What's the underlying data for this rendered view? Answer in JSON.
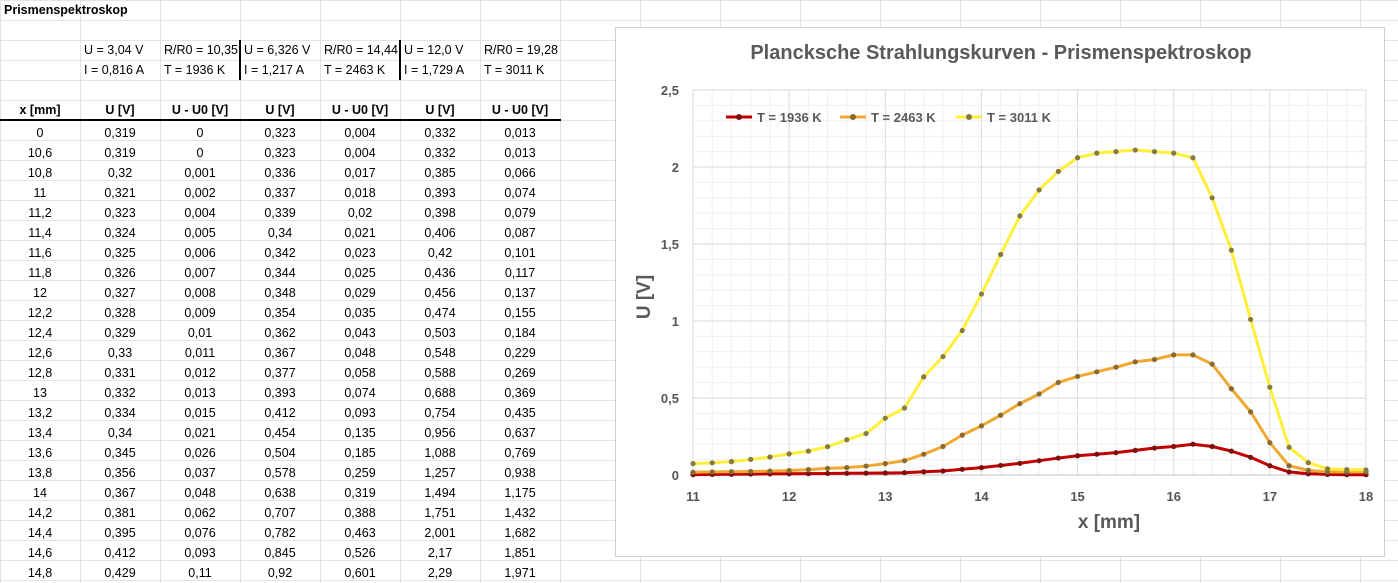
{
  "sheet": {
    "title": "Prismenspektroskop",
    "params": [
      {
        "u": "U = 3,04 V",
        "i": "I = 0,816 A",
        "r": "R/R0 = 10,35",
        "t": "T = 1936 K"
      },
      {
        "u": "U = 6,326 V",
        "i": "I = 1,217 A",
        "r": "R/R0 = 14,44",
        "t": "T = 2463 K"
      },
      {
        "u": "U = 12,0 V",
        "i": "I = 1,729 A",
        "r": "R/R0 = 19,28",
        "t": "T = 3011 K"
      }
    ],
    "headers": [
      "x [mm]",
      "U [V]",
      "U - U0 [V]",
      "U [V]",
      "U - U0 [V]",
      "U [V]",
      "U - U0 [V]"
    ],
    "rows": [
      [
        "0",
        "0,319",
        "0",
        "0,323",
        "0,004",
        "0,332",
        "0,013"
      ],
      [
        "10,6",
        "0,319",
        "0",
        "0,323",
        "0,004",
        "0,332",
        "0,013"
      ],
      [
        "10,8",
        "0,32",
        "0,001",
        "0,336",
        "0,017",
        "0,385",
        "0,066"
      ],
      [
        "11",
        "0,321",
        "0,002",
        "0,337",
        "0,018",
        "0,393",
        "0,074"
      ],
      [
        "11,2",
        "0,323",
        "0,004",
        "0,339",
        "0,02",
        "0,398",
        "0,079"
      ],
      [
        "11,4",
        "0,324",
        "0,005",
        "0,34",
        "0,021",
        "0,406",
        "0,087"
      ],
      [
        "11,6",
        "0,325",
        "0,006",
        "0,342",
        "0,023",
        "0,42",
        "0,101"
      ],
      [
        "11,8",
        "0,326",
        "0,007",
        "0,344",
        "0,025",
        "0,436",
        "0,117"
      ],
      [
        "12",
        "0,327",
        "0,008",
        "0,348",
        "0,029",
        "0,456",
        "0,137"
      ],
      [
        "12,2",
        "0,328",
        "0,009",
        "0,354",
        "0,035",
        "0,474",
        "0,155"
      ],
      [
        "12,4",
        "0,329",
        "0,01",
        "0,362",
        "0,043",
        "0,503",
        "0,184"
      ],
      [
        "12,6",
        "0,33",
        "0,011",
        "0,367",
        "0,048",
        "0,548",
        "0,229"
      ],
      [
        "12,8",
        "0,331",
        "0,012",
        "0,377",
        "0,058",
        "0,588",
        "0,269"
      ],
      [
        "13",
        "0,332",
        "0,013",
        "0,393",
        "0,074",
        "0,688",
        "0,369"
      ],
      [
        "13,2",
        "0,334",
        "0,015",
        "0,412",
        "0,093",
        "0,754",
        "0,435"
      ],
      [
        "13,4",
        "0,34",
        "0,021",
        "0,454",
        "0,135",
        "0,956",
        "0,637"
      ],
      [
        "13,6",
        "0,345",
        "0,026",
        "0,504",
        "0,185",
        "1,088",
        "0,769"
      ],
      [
        "13,8",
        "0,356",
        "0,037",
        "0,578",
        "0,259",
        "1,257",
        "0,938"
      ],
      [
        "14",
        "0,367",
        "0,048",
        "0,638",
        "0,319",
        "1,494",
        "1,175"
      ],
      [
        "14,2",
        "0,381",
        "0,062",
        "0,707",
        "0,388",
        "1,751",
        "1,432"
      ],
      [
        "14,4",
        "0,395",
        "0,076",
        "0,782",
        "0,463",
        "2,001",
        "1,682"
      ],
      [
        "14,6",
        "0,412",
        "0,093",
        "0,845",
        "0,526",
        "2,17",
        "1,851"
      ],
      [
        "14,8",
        "0,429",
        "0,11",
        "0,92",
        "0,601",
        "2,29",
        "1,971"
      ]
    ]
  },
  "chart_data": {
    "type": "line",
    "title": "Plancksche Strahlungskurven - Prismenspektroskop",
    "xlabel": "x [mm]",
    "ylabel": "U [V]",
    "xlim": [
      11,
      18
    ],
    "ylim": [
      0,
      2.5
    ],
    "xticks": [
      "11",
      "12",
      "13",
      "14",
      "15",
      "16",
      "17",
      "18"
    ],
    "yticks": [
      "0",
      "0,5",
      "1",
      "1,5",
      "2",
      "2,5"
    ],
    "grid": true,
    "legend_position": "top-left",
    "x": [
      11,
      11.2,
      11.4,
      11.6,
      11.8,
      12,
      12.2,
      12.4,
      12.6,
      12.8,
      13,
      13.2,
      13.4,
      13.6,
      13.8,
      14,
      14.2,
      14.4,
      14.6,
      14.8,
      15,
      15.2,
      15.4,
      15.6,
      15.8,
      16,
      16.2,
      16.4,
      16.6,
      16.8,
      17,
      17.2,
      17.4,
      17.6,
      17.8,
      18
    ],
    "series": [
      {
        "name": "T = 1936 K",
        "color": "#c00000",
        "marker": "#7a1010",
        "values": [
          0.002,
          0.004,
          0.005,
          0.006,
          0.007,
          0.008,
          0.009,
          0.01,
          0.011,
          0.012,
          0.013,
          0.015,
          0.021,
          0.026,
          0.037,
          0.048,
          0.062,
          0.076,
          0.093,
          0.11,
          0.125,
          0.135,
          0.145,
          0.16,
          0.175,
          0.185,
          0.2,
          0.185,
          0.155,
          0.115,
          0.06,
          0.02,
          0.008,
          0.004,
          0.002,
          0.002
        ]
      },
      {
        "name": "T = 2463 K",
        "color": "#f0a830",
        "marker": "#8a6a30",
        "values": [
          0.018,
          0.02,
          0.021,
          0.023,
          0.025,
          0.029,
          0.035,
          0.043,
          0.048,
          0.058,
          0.074,
          0.093,
          0.135,
          0.185,
          0.259,
          0.319,
          0.388,
          0.463,
          0.526,
          0.601,
          0.64,
          0.67,
          0.7,
          0.735,
          0.75,
          0.78,
          0.78,
          0.72,
          0.56,
          0.41,
          0.21,
          0.06,
          0.03,
          0.02,
          0.02,
          0.02
        ]
      },
      {
        "name": "T = 3011 K",
        "color": "#ffee3a",
        "marker": "#857a40",
        "values": [
          0.074,
          0.079,
          0.087,
          0.101,
          0.117,
          0.137,
          0.155,
          0.184,
          0.229,
          0.269,
          0.369,
          0.435,
          0.637,
          0.769,
          0.938,
          1.175,
          1.432,
          1.682,
          1.851,
          1.971,
          2.06,
          2.09,
          2.1,
          2.11,
          2.1,
          2.09,
          2.06,
          1.8,
          1.46,
          1.01,
          0.57,
          0.18,
          0.08,
          0.04,
          0.035,
          0.033
        ]
      }
    ]
  }
}
